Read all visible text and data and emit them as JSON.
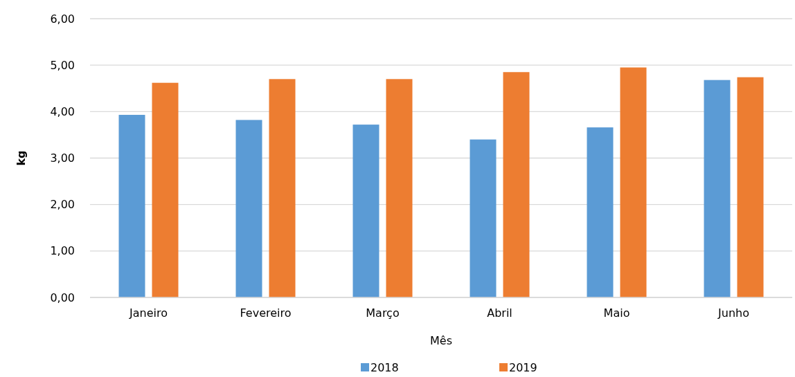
{
  "chart_data": {
    "type": "bar",
    "xlabel": "Mês",
    "ylabel": "kg",
    "categories": [
      "Janeiro",
      "Fevereiro",
      "Março",
      "Abril",
      "Maio",
      "Junho"
    ],
    "series": [
      {
        "name": "2018",
        "color": "#5b9bd5",
        "values": [
          3.93,
          3.82,
          3.72,
          3.4,
          3.66,
          4.68
        ]
      },
      {
        "name": "2019",
        "color": "#ed7d31",
        "values": [
          4.62,
          4.7,
          4.7,
          4.85,
          4.95,
          4.74
        ]
      }
    ],
    "ylim": [
      0,
      6
    ],
    "yticks": [
      {
        "value": 0,
        "label": "0,00"
      },
      {
        "value": 1,
        "label": "1,00"
      },
      {
        "value": 2,
        "label": "2,00"
      },
      {
        "value": 3,
        "label": "3,00"
      },
      {
        "value": 4,
        "label": "4,00"
      },
      {
        "value": 5,
        "label": "5,00"
      },
      {
        "value": 6,
        "label": "6,00"
      }
    ],
    "grid": "y",
    "legend": "bottom"
  }
}
